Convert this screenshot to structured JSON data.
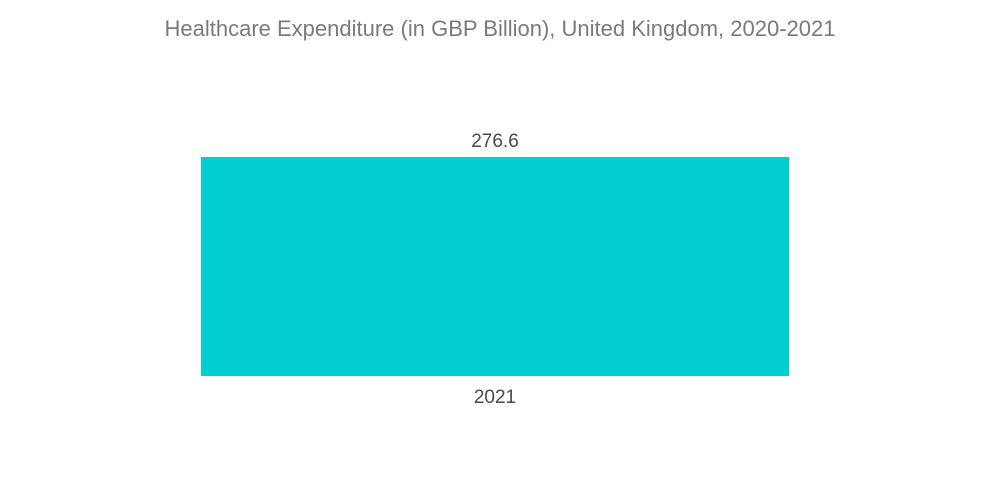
{
  "title": "Healthcare Expenditure (in GBP Billion), United Kingdom, 2020-2021",
  "colors": {
    "bar": "#00ced1"
  },
  "chart_data": {
    "type": "bar",
    "title": "Healthcare Expenditure (in GBP Billion), United Kingdom, 2020-2021",
    "categories": [
      "2021"
    ],
    "values": [
      276.6
    ],
    "value_labels": [
      "276.6"
    ],
    "xlabel": "",
    "ylabel": "",
    "ylim": [
      0,
      276.6
    ],
    "grid": false,
    "legend": "none"
  }
}
